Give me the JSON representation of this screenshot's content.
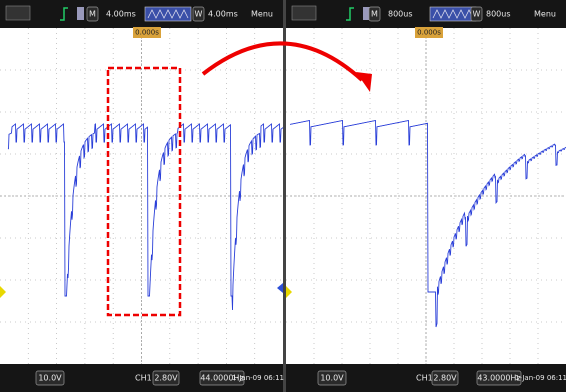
{
  "screens": [
    {
      "top": {
        "m": "M",
        "timebase": "4.00ms",
        "w": "W",
        "window": "4.00ms",
        "menu": "Menu"
      },
      "trigger_position": "0.000s",
      "bottom": {
        "volts": "10.0V",
        "channel": "CH1",
        "trigger_level": "2.80V",
        "frequency": "44.0000Hz",
        "datetime": "1-Jan-09 06:11"
      }
    },
    {
      "top": {
        "m": "M",
        "timebase": "800us",
        "w": "W",
        "window": "800us",
        "menu": "Menu"
      },
      "trigger_position": "0.000s",
      "bottom": {
        "volts": "10.0V",
        "channel": "CH1",
        "trigger_level": "2.80V",
        "frequency": "43.0000Hz",
        "datetime": "1-Jan-09 06:11"
      }
    }
  ]
}
